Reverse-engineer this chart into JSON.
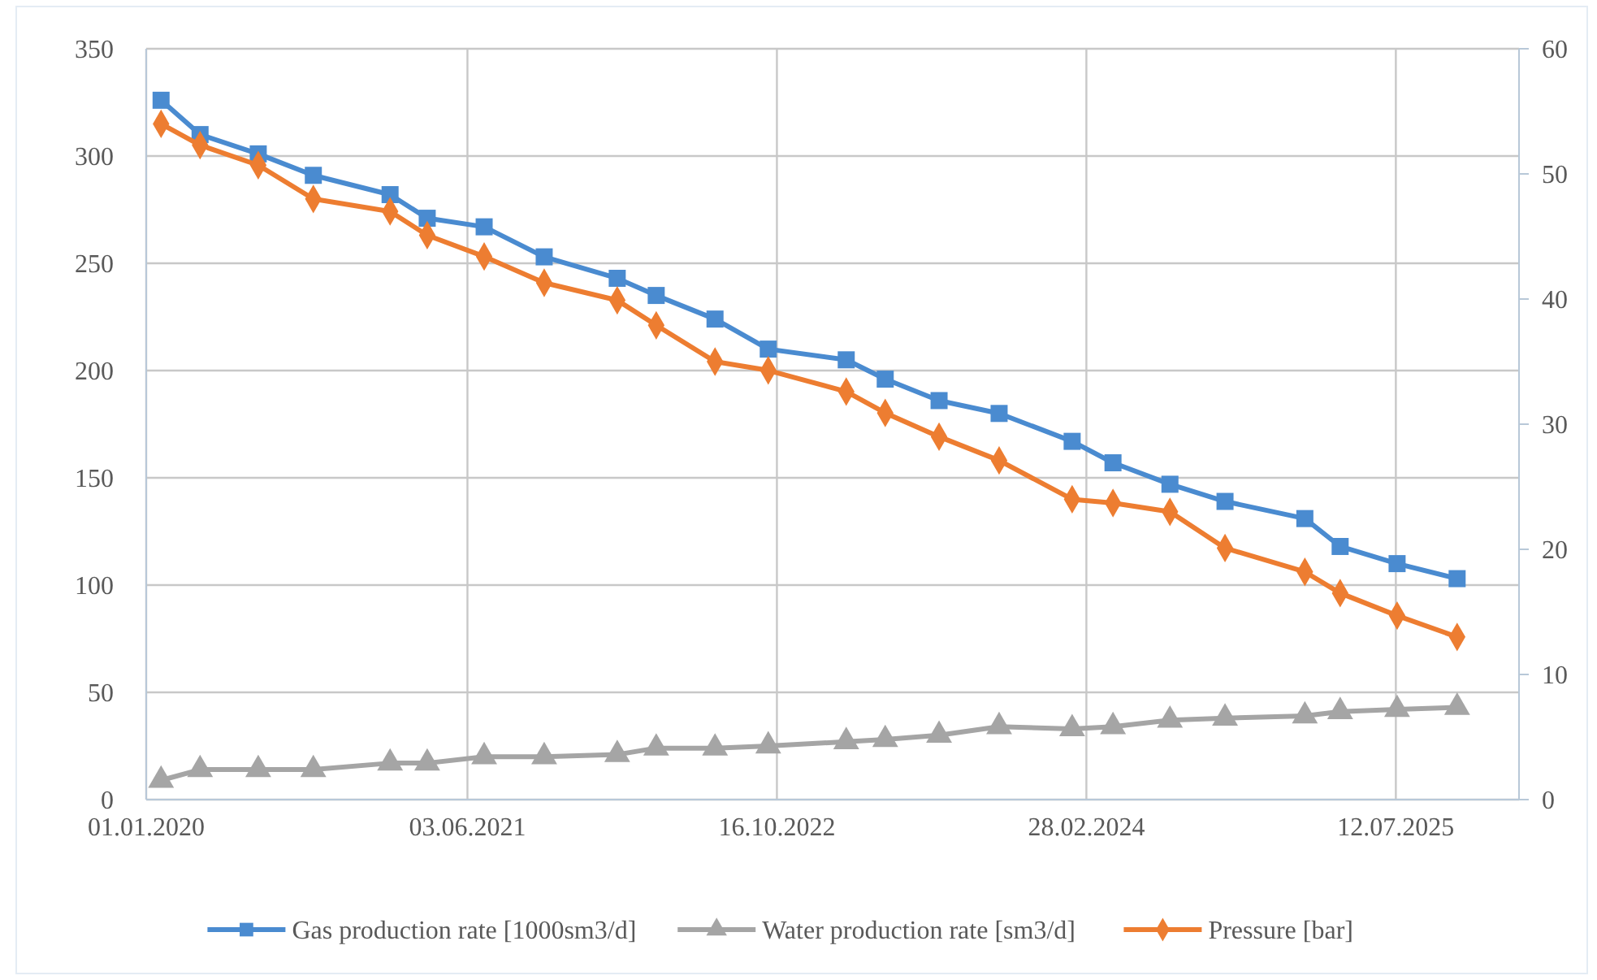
{
  "chart_data": {
    "type": "line",
    "x": [
      "2020-01-25",
      "2020-03-28",
      "2020-06-30",
      "2020-09-27",
      "2021-01-29",
      "2021-03-30",
      "2021-06-30",
      "2021-10-05",
      "2022-01-31",
      "2022-04-04",
      "2022-07-08",
      "2022-10-02",
      "2023-02-05",
      "2023-04-09",
      "2023-07-05",
      "2023-10-10",
      "2024-02-05",
      "2024-04-11",
      "2024-07-12",
      "2024-10-09",
      "2025-02-15",
      "2025-04-13",
      "2025-07-14",
      "2025-10-19"
    ],
    "series": [
      {
        "name": "Gas production rate [1000sm3/d]",
        "color": "#4a8bd0",
        "marker": "square",
        "values": [
          326,
          310,
          301,
          291,
          282,
          271,
          267,
          253,
          243,
          235,
          224,
          210,
          205,
          196,
          186,
          180,
          167,
          157,
          147,
          139,
          131,
          118,
          110,
          103
        ]
      },
      {
        "name": "Water production rate [sm3/d]",
        "color": "#a5a5a5",
        "marker": "triangle",
        "values": [
          9,
          14,
          14,
          14,
          17,
          17,
          20,
          20,
          21,
          24,
          24,
          25,
          27,
          28,
          30,
          34,
          33,
          34,
          37,
          38,
          39,
          41,
          42,
          43
        ]
      },
      {
        "name": "Pressure [bar]",
        "color": "#ed7d31",
        "marker": "diamond",
        "axis": "y2",
        "values": [
          54.0,
          52.3,
          50.7,
          48.0,
          47.0,
          45.1,
          43.4,
          41.3,
          39.9,
          37.9,
          35.0,
          34.3,
          32.6,
          30.9,
          29.0,
          27.1,
          24.0,
          23.7,
          23.0,
          20.1,
          18.2,
          16.5,
          14.7,
          13.0
        ]
      }
    ],
    "xlim": [
      "2020-01-01",
      "2026-01-27"
    ],
    "xticks": [
      {
        "value": "2020-01-01",
        "label": "01.01.2020"
      },
      {
        "value": "2021-06-03",
        "label": "03.06.2021"
      },
      {
        "value": "2022-10-16",
        "label": "16.10.2022"
      },
      {
        "value": "2024-02-28",
        "label": "28.02.2024"
      },
      {
        "value": "2025-07-12",
        "label": "12.07.2025"
      }
    ],
    "ylim": [
      0,
      350
    ],
    "yticks": [
      0,
      50,
      100,
      150,
      200,
      250,
      300,
      350
    ],
    "y2lim": [
      0,
      60
    ],
    "y2ticks": [
      0,
      10,
      20,
      30,
      40,
      50,
      60
    ],
    "grid": true,
    "legend": "bottom",
    "line_style": "solid"
  }
}
